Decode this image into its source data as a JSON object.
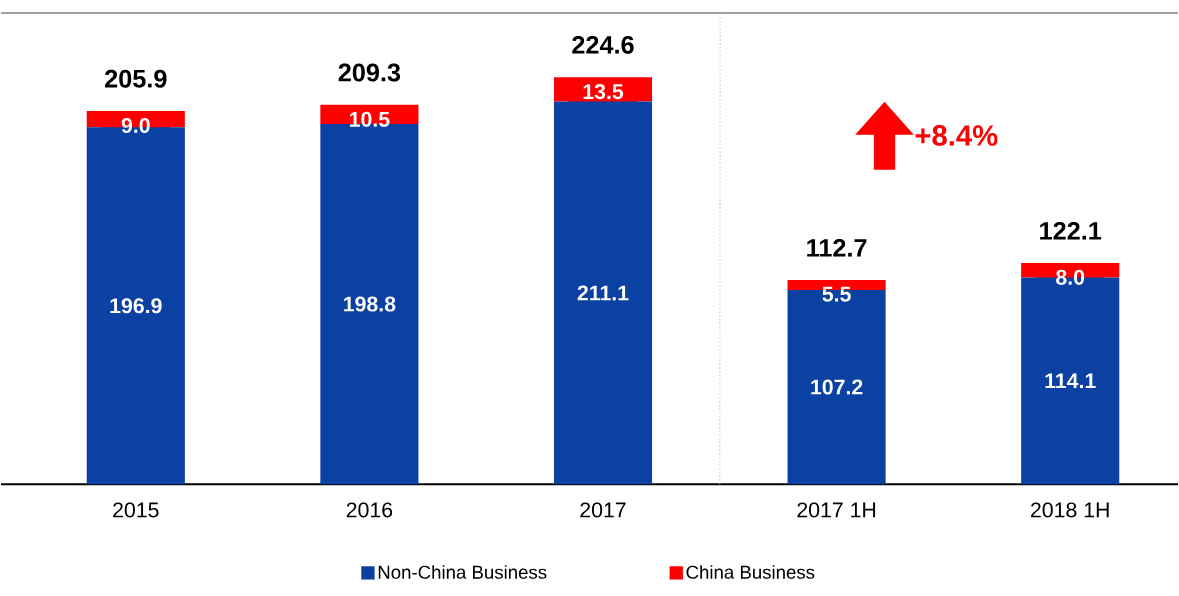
{
  "chart_data": {
    "type": "bar",
    "stacked": true,
    "categories": [
      "2015",
      "2016",
      "2017",
      "2017 1H",
      "2018 1H"
    ],
    "series": [
      {
        "name": "Non-China Business",
        "color": "#0a41a3",
        "values": [
          196.9,
          198.8,
          211.1,
          107.2,
          114.1
        ],
        "value_labels": [
          "196.9",
          "198.8",
          "211.1",
          "107.2",
          "114.1"
        ]
      },
      {
        "name": "China Business",
        "color": "#ff0000",
        "values": [
          9.0,
          10.5,
          13.5,
          5.5,
          8.0
        ],
        "value_labels": [
          "9.0",
          "10.5",
          "13.5",
          "5.5",
          "8.0"
        ]
      }
    ],
    "totals": [
      "205.9",
      "209.3",
      "224.6",
      "112.7",
      "122.1"
    ],
    "ylim": [
      0,
      260
    ],
    "tick_labels": "x",
    "legend": "bottom",
    "annotations": [
      "+8.4%"
    ]
  }
}
